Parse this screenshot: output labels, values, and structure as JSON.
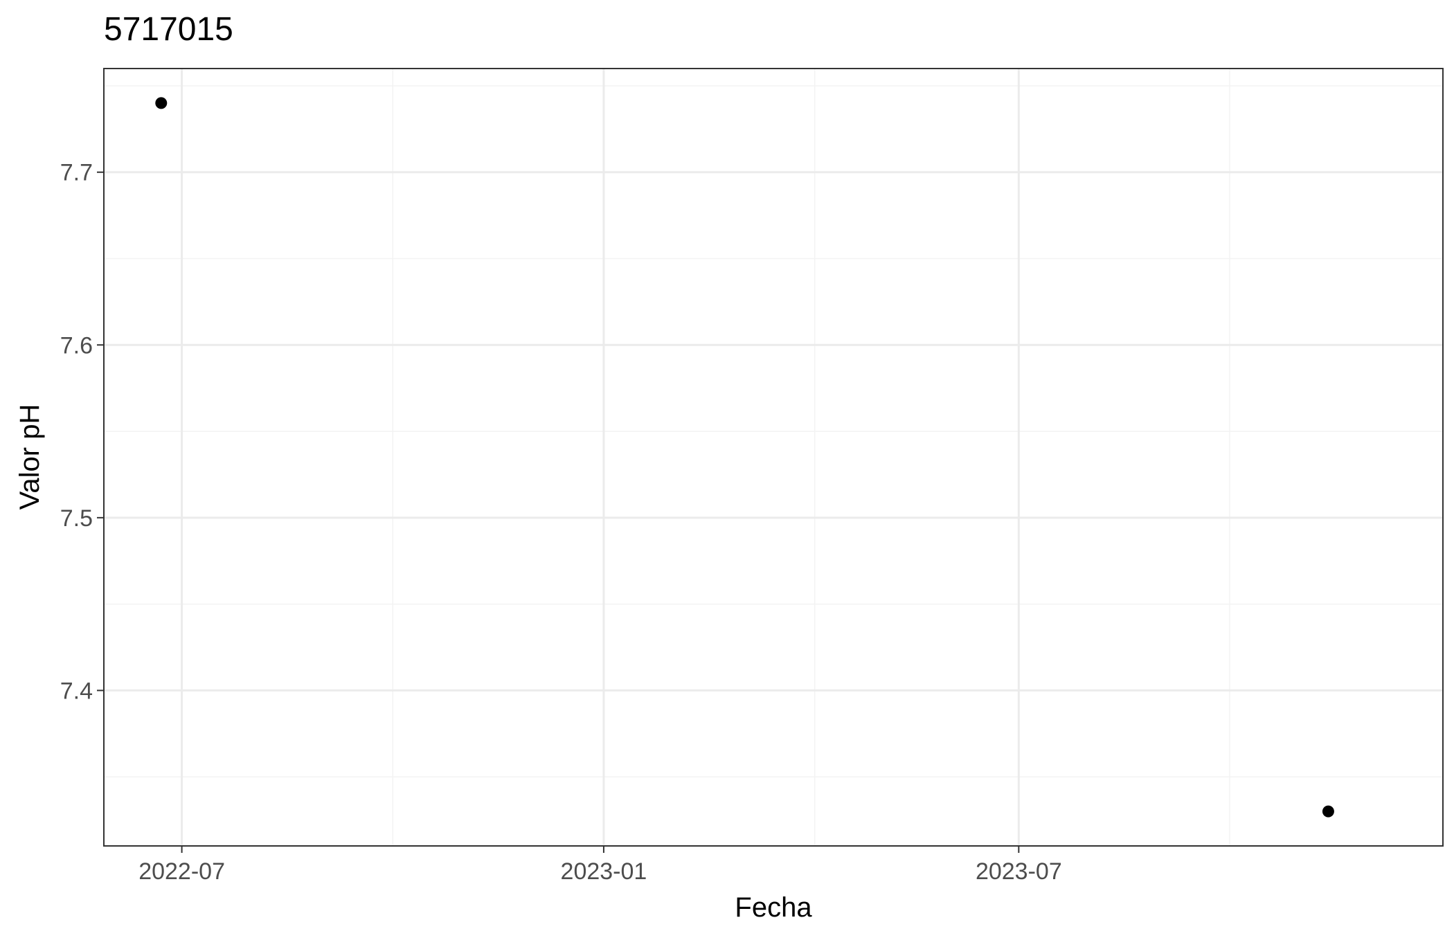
{
  "chart_data": {
    "type": "scatter",
    "title": "5717015",
    "xlabel": "Fecha",
    "ylabel": "Valor pH",
    "x_axis_type": "date",
    "x_ticks": [
      "2022-07",
      "2023-01",
      "2023-07"
    ],
    "y_ticks": [
      "7.4",
      "7.5",
      "7.6",
      "7.7"
    ],
    "xlim": [
      "2022-05-28",
      "2024-01-02"
    ],
    "ylim": [
      7.31,
      7.76
    ],
    "grid": true,
    "legend": "none",
    "points": [
      {
        "x": "2022-06-22",
        "y": 7.74
      },
      {
        "x": "2023-11-13",
        "y": 7.33
      }
    ],
    "colors": {
      "point": "#000000",
      "grid_major": "#ebebeb",
      "grid_minor": "#f3f3f3",
      "panel_border": "#333333",
      "tick_label": "#4d4d4d",
      "text": "#000000"
    }
  }
}
